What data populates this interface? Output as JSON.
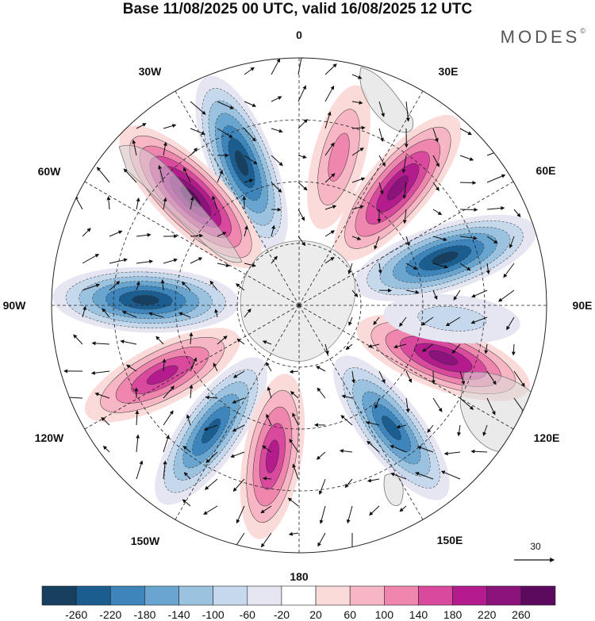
{
  "title": "Base 11/08/2025 00 UTC, valid 16/08/2025 12 UTC",
  "brand": "MODES",
  "brand_mark": "©",
  "projection": "South polar stereographic",
  "longitude_labels": {
    "lon_0": "0",
    "lon_30e": "30E",
    "lon_60e": "60E",
    "lon_90e": "90E",
    "lon_120e": "120E",
    "lon_150e": "150E",
    "lon_180": "180",
    "lon_150w": "150W",
    "lon_120w": "120W",
    "lon_90w": "90W",
    "lon_60w": "60W",
    "lon_30w": "30W"
  },
  "vector_scale": {
    "label": "30"
  },
  "colorbar": {
    "colors": [
      "#173f5f",
      "#1c5d8f",
      "#3d85bb",
      "#69a5cf",
      "#9bc3e0",
      "#c6d8ec",
      "#e6e6f3",
      "#ffffff",
      "#fbdada",
      "#f7b6c4",
      "#ee86ad",
      "#d94a9e",
      "#b41c8e",
      "#8c127c",
      "#5c0a5e"
    ],
    "ticks": [
      "-260",
      "-220",
      "-180",
      "-140",
      "-100",
      "-60",
      "-20",
      "20",
      "60",
      "100",
      "140",
      "180",
      "220",
      "260"
    ]
  },
  "anomaly_centers": [
    {
      "kind": "positive",
      "lon_deg": 15,
      "strength": 0.45
    },
    {
      "kind": "negative",
      "lon_deg": 40,
      "strength": 0.35
    },
    {
      "kind": "negative",
      "lon_deg": -22,
      "strength": 0.95
    },
    {
      "kind": "positive",
      "lon_deg": -45,
      "strength": 1.0
    },
    {
      "kind": "positive",
      "lon_deg": 40,
      "strength": 0.9
    },
    {
      "kind": "negative",
      "lon_deg": 72,
      "strength": 1.0
    },
    {
      "kind": "negative",
      "lon_deg": -88,
      "strength": 0.95
    },
    {
      "kind": "positive",
      "lon_deg": -117,
      "strength": 0.75
    },
    {
      "kind": "positive",
      "lon_deg": 110,
      "strength": 0.9
    },
    {
      "kind": "negative",
      "lon_deg": -145,
      "strength": 0.8
    },
    {
      "kind": "positive",
      "lon_deg": -170,
      "strength": 0.7
    },
    {
      "kind": "negative",
      "lon_deg": 143,
      "strength": 0.8
    },
    {
      "kind": "negative",
      "lon_deg": 95,
      "strength": 0.3
    }
  ]
}
